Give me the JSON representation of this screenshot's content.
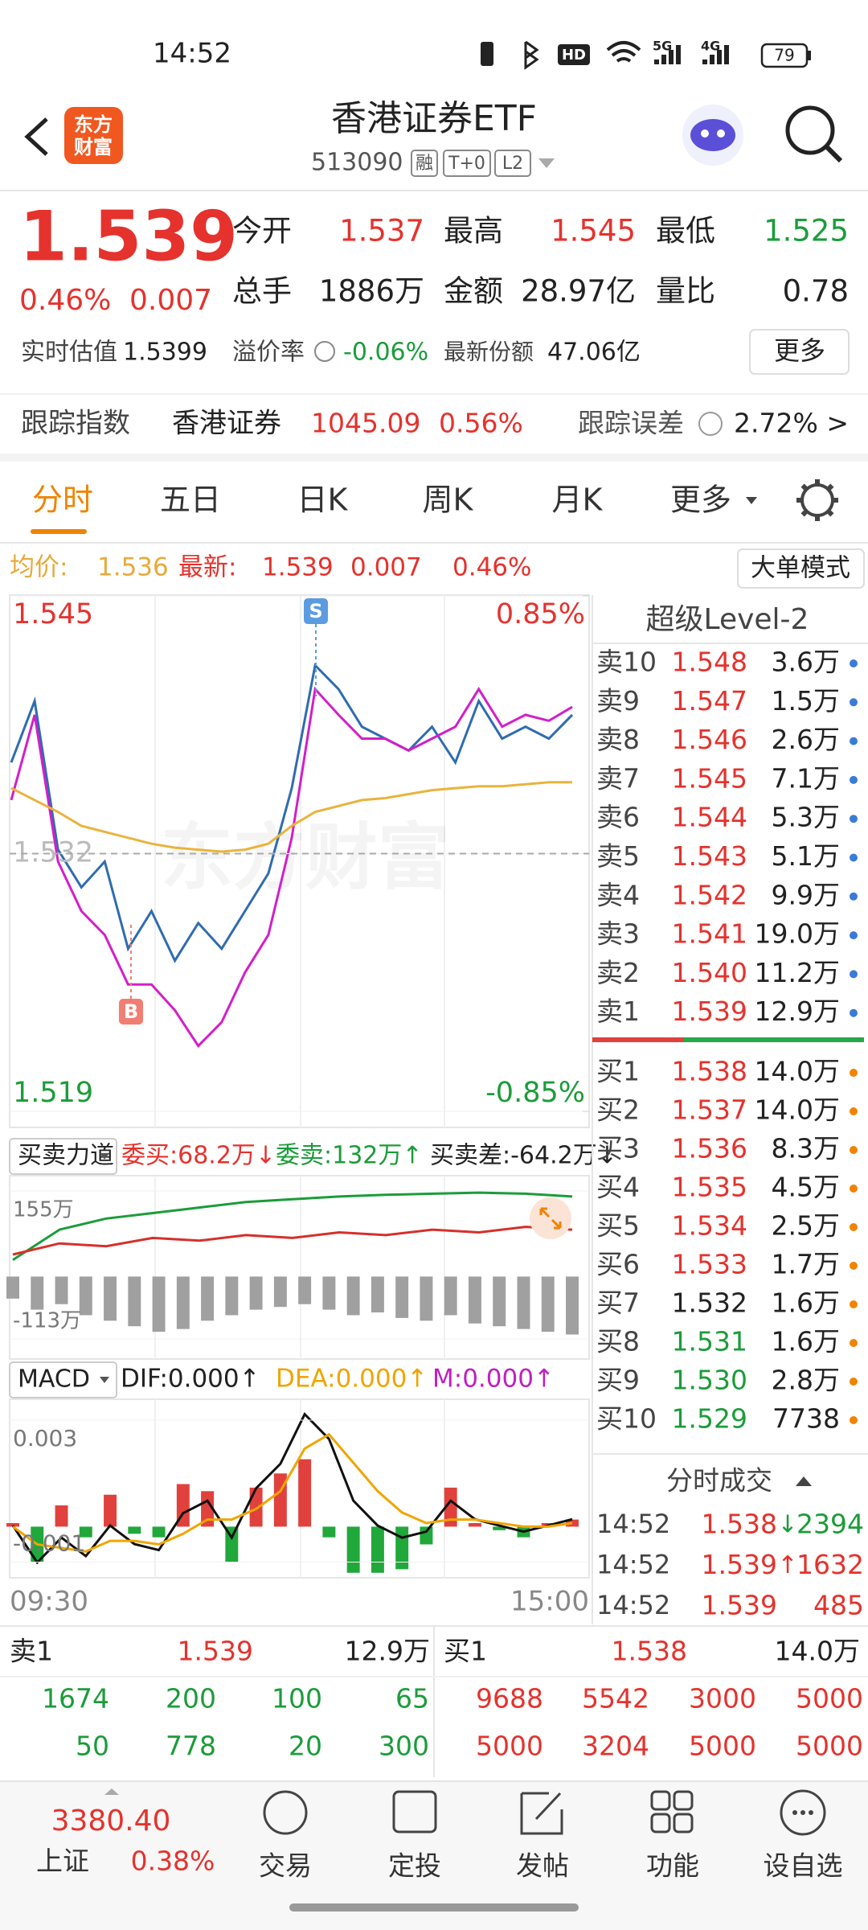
{
  "status_bar": {
    "time": "14:52",
    "battery": "79",
    "network": [
      "HD",
      "5G",
      "4G"
    ]
  },
  "header": {
    "logo": [
      "东方",
      "财富"
    ],
    "title": "香港证券ETF",
    "code": "513090",
    "tags": [
      "融",
      "T+0",
      "L2"
    ]
  },
  "quote": {
    "price": "1.539",
    "change_pct": "0.46%",
    "change": "0.007",
    "fields": [
      {
        "label": "今开",
        "value": "1.537"
      },
      {
        "label": "最高",
        "value": "1.545"
      },
      {
        "label": "最低",
        "value": "1.525"
      },
      {
        "label": "总手",
        "value": "1886万"
      },
      {
        "label": "金额",
        "value": "28.97亿"
      },
      {
        "label": "量比",
        "value": "0.78"
      }
    ],
    "estimate_label": "实时估值",
    "estimate": "1.5399",
    "premium_label": "溢价率",
    "premium": "-0.06%",
    "shares_label": "最新份额",
    "shares": "47.06亿",
    "more": "更多"
  },
  "tracking": {
    "label": "跟踪指数",
    "index": "香港证券",
    "value": "1045.09",
    "pct": "0.56%",
    "error_label": "跟踪误差",
    "error": "2.72% >"
  },
  "tabs": [
    "分时",
    "五日",
    "日K",
    "周K",
    "月K",
    "更多"
  ],
  "info_line": {
    "avg_label": "均价:",
    "avg": "1.536",
    "latest_label": "最新:",
    "latest": "1.539",
    "change": "0.007",
    "pct": "0.46%",
    "button": "大单模式"
  },
  "price_chart": {
    "type": "line",
    "watermark": "东方财富",
    "markers": [
      "S",
      "B"
    ],
    "ylim": [
      1.519,
      1.545
    ],
    "yticks": [
      1.519,
      1.532,
      1.545
    ],
    "y2lim": [
      -0.85,
      0.85
    ],
    "y2ticks": [
      {
        "value": -0.85,
        "label": "-0.85%"
      },
      {
        "value": 0.85,
        "label": "0.85%"
      }
    ],
    "series": [
      {
        "color": "#2f6cb0",
        "values": [
          1.5366,
          1.5397,
          1.5322,
          1.5303,
          1.5316,
          1.5272,
          1.5291,
          1.5266,
          1.5285,
          1.5272,
          1.5291,
          1.531,
          1.5353,
          1.5415,
          1.5403,
          1.5384,
          1.5378,
          1.5372,
          1.5384,
          1.5366,
          1.5397,
          1.5378,
          1.5384,
          1.5378,
          1.539
        ]
      },
      {
        "color": "#d21fc9",
        "values": [
          1.5347,
          1.539,
          1.5316,
          1.5291,
          1.5279,
          1.5254,
          1.5254,
          1.5241,
          1.5223,
          1.5235,
          1.526,
          1.5279,
          1.5328,
          1.5403,
          1.539,
          1.5378,
          1.5378,
          1.5372,
          1.5378,
          1.5384,
          1.5403,
          1.5384,
          1.539,
          1.5387,
          1.5394
        ]
      },
      {
        "color": "#eab33c",
        "values": [
          1.5353,
          1.5347,
          1.5341,
          1.5334,
          1.5331,
          1.5328,
          1.5325,
          1.5323,
          1.5322,
          1.5321,
          1.5322,
          1.5325,
          1.5334,
          1.5341,
          1.5344,
          1.5347,
          1.5348,
          1.535,
          1.5352,
          1.5353,
          1.5354,
          1.5354,
          1.5355,
          1.5356,
          1.5356
        ]
      }
    ]
  },
  "flow_chart": {
    "type": "line",
    "selector": "买卖力道",
    "legend": [
      {
        "text": "委买:68.2万↓",
        "color": "#e5322d"
      },
      {
        "text": "委卖:132万↑",
        "color": "#1b9c3a"
      },
      {
        "text": "买卖差:-64.2万↓",
        "color": "#222222"
      }
    ],
    "ylim": [
      -113,
      155
    ],
    "yticks": [
      {
        "value": -113,
        "label": "-113万"
      },
      {
        "value": 155,
        "label": "155万"
      }
    ],
    "bars": [
      -40,
      -60,
      -50,
      -70,
      -80,
      -90,
      -100,
      -95,
      -80,
      -70,
      -60,
      -55,
      -50,
      -60,
      -70,
      -65,
      -75,
      -80,
      -70,
      -85,
      -90,
      -95,
      -100,
      -105
    ],
    "bar_colors": [
      "#a0a0a0",
      "#a0a0a0"
    ],
    "series": [
      {
        "color": "#1b9c3a",
        "values": [
          30,
          85,
          105,
          115,
          125,
          135,
          140,
          145,
          148,
          150,
          152,
          150,
          145
        ]
      },
      {
        "color": "#d6302b",
        "values": [
          40,
          60,
          55,
          70,
          65,
          75,
          70,
          80,
          75,
          85,
          80,
          90,
          85
        ]
      }
    ]
  },
  "macd_chart": {
    "type": "line",
    "selector": "MACD",
    "legend": [
      {
        "text": "DIF:0.000↑",
        "color": "#222222"
      },
      {
        "text": "DEA:0.000↑",
        "color": "#f0a500"
      },
      {
        "text": "M:0.000↑",
        "color": "#c020c0"
      }
    ],
    "ylim": [
      -0.00135,
      0.0035
    ],
    "yticks": [
      -0.001,
      0.003
    ],
    "bars": [
      0.0001,
      -0.001,
      0.0006,
      -0.0003,
      0.0009,
      -0.0002,
      -0.0003,
      0.0012,
      0.001,
      -0.001,
      0.0011,
      0.0015,
      0.0019,
      -0.0003,
      -0.0013,
      -0.0013,
      -0.0012,
      -0.0005,
      0.0011,
      0.0001,
      -0.0001,
      -0.0003,
      0.0001,
      0.0002
    ],
    "bar_colors": [
      "#e0413d",
      "#20a83a"
    ],
    "series": [
      {
        "color": "#111111",
        "values": [
          3e-05,
          -0.00101,
          -0.00031,
          -0.00083,
          3e-05,
          -0.00049,
          -0.00066,
          0.00038,
          0.00073,
          -0.00031,
          0.00108,
          0.00177,
          0.00317,
          0.00247,
          0.00073,
          3e-05,
          -0.00031,
          -0.00014,
          0.00073,
          0.00021,
          3e-05,
          -0.00014,
          3e-05,
          0.00021
        ]
      },
      {
        "color": "#f0a500",
        "values": [
          0,
          -0.0005,
          -0.0006,
          -0.0007,
          -0.0004,
          -0.0004,
          -0.0005,
          -0.0002,
          0.0002,
          0.0002,
          0.0005,
          0.001,
          0.0022,
          0.0026,
          0.0018,
          0.001,
          0.0004,
          0.0001,
          0.0002,
          0.0002,
          0.0001,
          0,
          0,
          0.0001
        ]
      }
    ]
  },
  "time_axis": [
    "09:30",
    "15:00"
  ],
  "level2": {
    "title": "超级Level-2",
    "asks": [
      {
        "label": "卖10",
        "price": "1.548",
        "volume": "3.6万"
      },
      {
        "label": "卖9",
        "price": "1.547",
        "volume": "1.5万"
      },
      {
        "label": "卖8",
        "price": "1.546",
        "volume": "2.6万"
      },
      {
        "label": "卖7",
        "price": "1.545",
        "volume": "7.1万"
      },
      {
        "label": "卖6",
        "price": "1.544",
        "volume": "5.3万"
      },
      {
        "label": "卖5",
        "price": "1.543",
        "volume": "5.1万"
      },
      {
        "label": "卖4",
        "price": "1.542",
        "volume": "9.9万"
      },
      {
        "label": "卖3",
        "price": "1.541",
        "volume": "19.0万"
      },
      {
        "label": "卖2",
        "price": "1.540",
        "volume": "11.2万"
      },
      {
        "label": "卖1",
        "price": "1.539",
        "volume": "12.9万"
      }
    ],
    "bids": [
      {
        "label": "买1",
        "price": "1.538",
        "volume": "14.0万"
      },
      {
        "label": "买2",
        "price": "1.537",
        "volume": "14.0万"
      },
      {
        "label": "买3",
        "price": "1.536",
        "volume": "8.3万"
      },
      {
        "label": "买4",
        "price": "1.535",
        "volume": "4.5万"
      },
      {
        "label": "买5",
        "price": "1.534",
        "volume": "2.5万"
      },
      {
        "label": "买6",
        "price": "1.533",
        "volume": "1.7万"
      },
      {
        "label": "买7",
        "price": "1.532",
        "volume": "1.6万"
      },
      {
        "label": "买8",
        "price": "1.531",
        "volume": "1.6万"
      },
      {
        "label": "买9",
        "price": "1.530",
        "volume": "2.8万"
      },
      {
        "label": "买10",
        "price": "1.529",
        "volume": "7738"
      }
    ]
  },
  "trades": {
    "title": "分时成交",
    "rows": [
      {
        "time": "14:52",
        "price": "1.538",
        "dir": "↓",
        "volume": "2394"
      },
      {
        "time": "14:52",
        "price": "1.539",
        "dir": "↑",
        "volume": "1632"
      },
      {
        "time": "14:52",
        "price": "1.539",
        "volume": "485"
      }
    ]
  },
  "bottom_book": {
    "ask": {
      "label": "卖1",
      "price": "1.539",
      "volume": "12.9万",
      "orders": [
        [
          1674,
          200,
          100,
          65
        ],
        [
          50,
          778,
          20,
          300
        ]
      ]
    },
    "bid": {
      "label": "买1",
      "price": "1.538",
      "volume": "14.0万",
      "orders": [
        [
          9688,
          5542,
          3000,
          5000
        ],
        [
          5000,
          3204,
          5000,
          5000
        ]
      ]
    }
  },
  "nav": {
    "index_value": "3380.40",
    "index_name": "上证",
    "index_pct": "0.38%",
    "items": [
      "交易",
      "定投",
      "发帖",
      "功能",
      "设自选"
    ]
  }
}
